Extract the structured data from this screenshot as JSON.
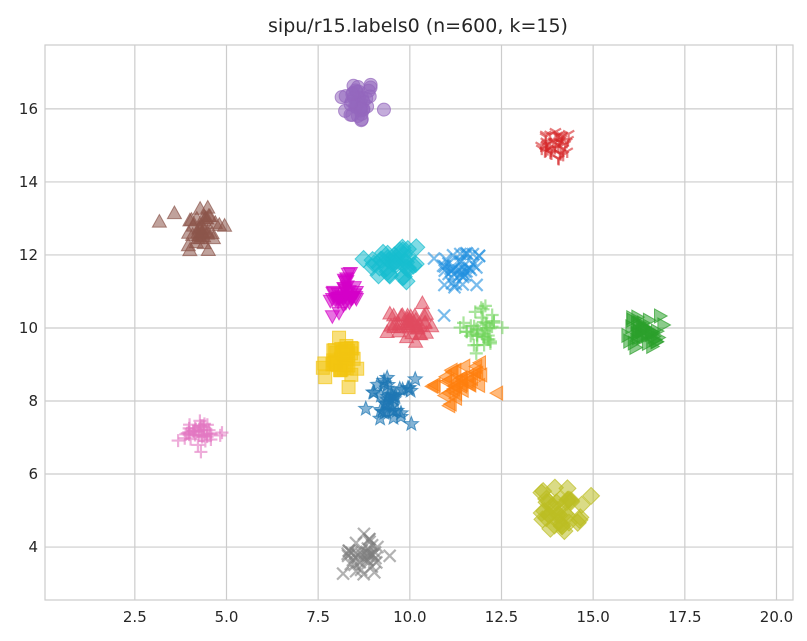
{
  "chart_data": {
    "type": "scatter",
    "title": "sipu/r15.labels0 (n=600, k=15)",
    "xlabel": "",
    "ylabel": "",
    "xlim": [
      0.05,
      20.45
    ],
    "ylim": [
      2.55,
      17.75
    ],
    "x_ticks": [
      "2.5",
      "5.0",
      "7.5",
      "10.0",
      "12.5",
      "15.0",
      "17.5",
      "20.0"
    ],
    "y_ticks": [
      "4",
      "6",
      "8",
      "10",
      "12",
      "14",
      "16"
    ],
    "grid": true,
    "legend": "none",
    "clusters": [
      {
        "marker": "circle",
        "color": "#9467bd",
        "center": [
          8.6,
          16.2
        ],
        "spread": [
          0.25,
          0.3
        ]
      },
      {
        "marker": "tri_down",
        "color": "#d62728",
        "center": [
          14.0,
          15.0
        ],
        "spread": [
          0.22,
          0.22
        ]
      },
      {
        "marker": "triangle_up",
        "color": "#8c564b",
        "center": [
          4.3,
          12.75
        ],
        "spread": [
          0.28,
          0.35
        ]
      },
      {
        "marker": "diamond",
        "color": "#17becf",
        "center": [
          9.6,
          11.8
        ],
        "spread": [
          0.4,
          0.3
        ]
      },
      {
        "marker": "x",
        "color": "#1f8fe0",
        "center": [
          11.4,
          11.6
        ],
        "spread": [
          0.3,
          0.3
        ]
      },
      {
        "marker": "triangle_down",
        "color": "#d400c8",
        "center": [
          8.2,
          10.9
        ],
        "spread": [
          0.2,
          0.25
        ]
      },
      {
        "marker": "triangle_up",
        "color": "#e04a5f",
        "center": [
          10.0,
          10.1
        ],
        "spread": [
          0.25,
          0.25
        ]
      },
      {
        "marker": "plus",
        "color": "#70d35a",
        "center": [
          12.0,
          10.0
        ],
        "spread": [
          0.25,
          0.3
        ]
      },
      {
        "marker": "triangle_right",
        "color": "#2ca02c",
        "center": [
          16.4,
          9.9
        ],
        "spread": [
          0.22,
          0.22
        ]
      },
      {
        "marker": "square",
        "color": "#f2c511",
        "center": [
          8.1,
          9.1
        ],
        "spread": [
          0.25,
          0.25
        ]
      },
      {
        "marker": "triangle_left",
        "color": "#ff7f0e",
        "center": [
          11.4,
          8.5
        ],
        "spread": [
          0.35,
          0.25
        ]
      },
      {
        "marker": "star",
        "color": "#1f77b4",
        "center": [
          9.5,
          8.0
        ],
        "spread": [
          0.3,
          0.3
        ]
      },
      {
        "marker": "plus",
        "color": "#e377c2",
        "center": [
          4.3,
          7.1
        ],
        "spread": [
          0.3,
          0.18
        ]
      },
      {
        "marker": "diamond",
        "color": "#bcbd22",
        "center": [
          14.1,
          5.0
        ],
        "spread": [
          0.28,
          0.3
        ]
      },
      {
        "marker": "x",
        "color": "#7f7f7f",
        "center": [
          8.7,
          3.8
        ],
        "spread": [
          0.25,
          0.28
        ]
      }
    ],
    "points_per_cluster": 40
  }
}
